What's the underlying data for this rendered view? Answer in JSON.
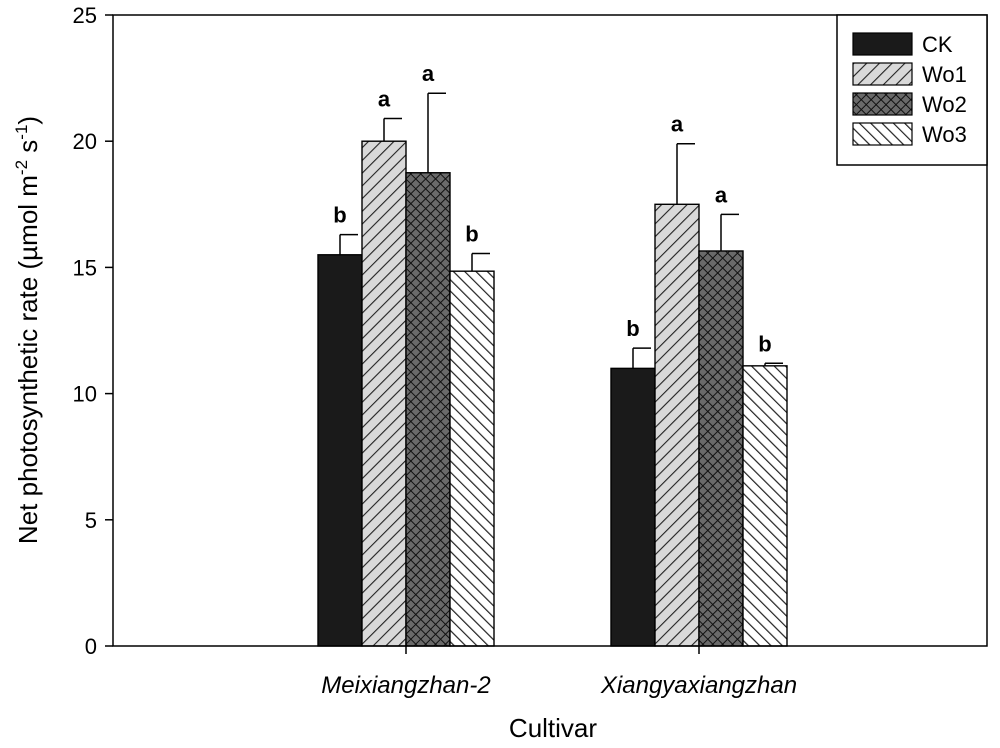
{
  "chart_data": {
    "type": "bar",
    "title": "",
    "xlabel": "Cultivar",
    "ylabel_main": "Net photosynthetic rate (µmol m",
    "ylabel_sup1": "-2",
    "ylabel_mid": " s",
    "ylabel_sup2": "-1",
    "ylabel_end": ")",
    "ylim": [
      0,
      25
    ],
    "yticks": [
      0,
      5,
      10,
      15,
      20,
      25
    ],
    "categories": [
      "Meixiangzhan-2",
      "Xiangyaxiangzhan"
    ],
    "series": [
      {
        "name": "CK",
        "pattern": "solid",
        "values": [
          15.5,
          11.0
        ],
        "errors": [
          0.8,
          0.8
        ],
        "letters": [
          "b",
          "b"
        ]
      },
      {
        "name": "Wo1",
        "pattern": "diag",
        "values": [
          20.0,
          17.5
        ],
        "errors": [
          0.9,
          2.4
        ],
        "letters": [
          "a",
          "a"
        ]
      },
      {
        "name": "Wo2",
        "pattern": "crosshatch",
        "values": [
          18.75,
          15.65
        ],
        "errors": [
          3.15,
          1.45
        ],
        "letters": [
          "a",
          "a"
        ]
      },
      {
        "name": "Wo3",
        "pattern": "backdiag",
        "values": [
          14.85,
          11.1
        ],
        "errors": [
          0.7,
          0.1
        ],
        "letters": [
          "b",
          "b"
        ]
      }
    ],
    "legend_position": "top-right",
    "colors": {
      "bar_fill": "#1a1a1a",
      "hatch_bg": "#d8d8d8",
      "hatch_line": "#222222",
      "axis": "#000000"
    }
  }
}
